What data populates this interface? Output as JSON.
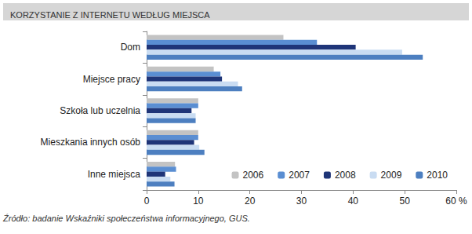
{
  "chart_data": {
    "type": "bar",
    "title": "KORZYSTANIE Z INTERNETU WEDŁUG MIEJSCA",
    "orientation": "horizontal",
    "categories": [
      "Dom",
      "Miejsce pracy",
      "Szkoła lub uczelnia",
      "Mieszkania innych osób",
      "Inne miejsca"
    ],
    "series": [
      {
        "name": "2006",
        "color": "#c3c3c3",
        "values": [
          26.5,
          13,
          10,
          10,
          5.5
        ]
      },
      {
        "name": "2007",
        "color": "#5a8ed2",
        "values": [
          33,
          14.3,
          10,
          10,
          5.7
        ]
      },
      {
        "name": "2008",
        "color": "#1f3578",
        "values": [
          40.5,
          14.6,
          8.7,
          9.2,
          3.6
        ]
      },
      {
        "name": "2009",
        "color": "#c9dcf2",
        "values": [
          49.5,
          17.7,
          9.5,
          10.2,
          4.6
        ]
      },
      {
        "name": "2010",
        "color": "#4d7fc0",
        "values": [
          53.5,
          18.5,
          9.5,
          11.2,
          5.4
        ]
      }
    ],
    "xlim": [
      0,
      60
    ],
    "xticks": [
      0,
      10,
      20,
      30,
      40,
      50,
      {
        "value": 60,
        "label": "60 %"
      }
    ],
    "grid": false,
    "legend": "lower right",
    "annotations": [
      "Źródło: badanie Wskaźniki społeczeństwa informacyjnego, GUS."
    ]
  }
}
